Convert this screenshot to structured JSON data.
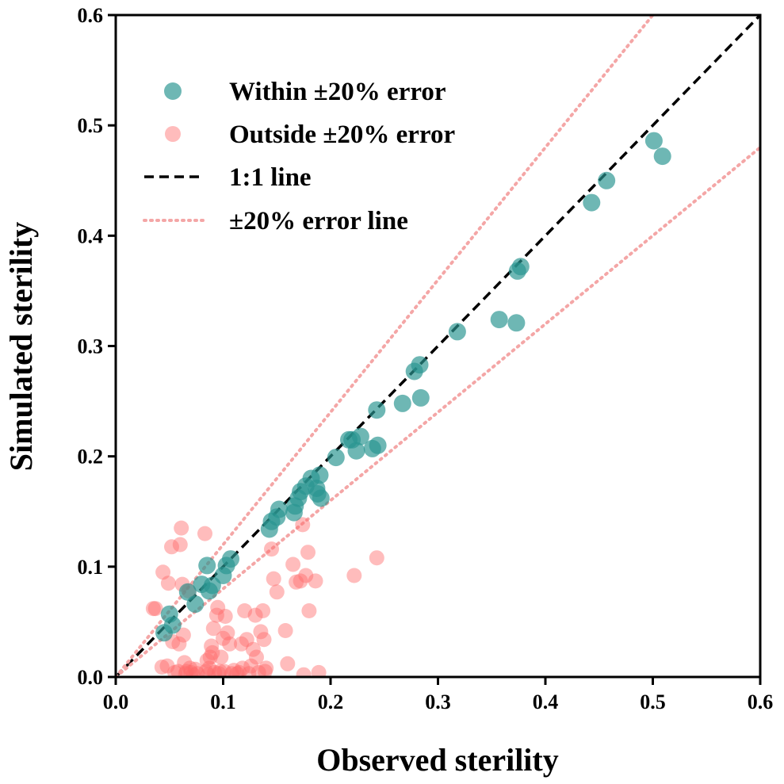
{
  "chart_data": {
    "type": "scatter",
    "title": "",
    "xlabel": "Observed sterility",
    "ylabel": "Simulated sterility",
    "xlim": [
      0.0,
      0.6
    ],
    "ylim": [
      0.0,
      0.6
    ],
    "xticks": [
      "0.0",
      "0.1",
      "0.2",
      "0.3",
      "0.4",
      "0.5",
      "0.6"
    ],
    "yticks": [
      "0.0",
      "0.1",
      "0.2",
      "0.3",
      "0.4",
      "0.5",
      "0.6"
    ],
    "grid": false,
    "legend_position": "top-left",
    "legend": [
      {
        "label": "Within ±20% error",
        "kind": "marker",
        "color": "#2a9590"
      },
      {
        "label": "Outside ±20% error",
        "kind": "marker",
        "color": "#ff7f7f"
      },
      {
        "label": "1:1 line",
        "kind": "dashed",
        "color": "#000000"
      },
      {
        "label": "±20% error line",
        "kind": "dotted",
        "color": "#f4a6a6"
      }
    ],
    "reference_lines": [
      {
        "name": "1:1 line",
        "slope": 1.0
      },
      {
        "name": "±20% error line",
        "slope": 1.2
      },
      {
        "name": "±20% error line",
        "slope": 0.8
      }
    ],
    "series": [
      {
        "name": "Within ±20% error",
        "color": "#2a9590",
        "points": [
          [
            0.045,
            0.04
          ],
          [
            0.05,
            0.057
          ],
          [
            0.053,
            0.047
          ],
          [
            0.067,
            0.077
          ],
          [
            0.074,
            0.066
          ],
          [
            0.08,
            0.084
          ],
          [
            0.085,
            0.101
          ],
          [
            0.087,
            0.078
          ],
          [
            0.09,
            0.083
          ],
          [
            0.1,
            0.092
          ],
          [
            0.103,
            0.101
          ],
          [
            0.107,
            0.107
          ],
          [
            0.143,
            0.134
          ],
          [
            0.145,
            0.141
          ],
          [
            0.15,
            0.145
          ],
          [
            0.152,
            0.152
          ],
          [
            0.166,
            0.149
          ],
          [
            0.167,
            0.155
          ],
          [
            0.17,
            0.162
          ],
          [
            0.172,
            0.168
          ],
          [
            0.177,
            0.173
          ],
          [
            0.182,
            0.18
          ],
          [
            0.187,
            0.171
          ],
          [
            0.188,
            0.166
          ],
          [
            0.19,
            0.183
          ],
          [
            0.191,
            0.162
          ],
          [
            0.205,
            0.199
          ],
          [
            0.217,
            0.215
          ],
          [
            0.22,
            0.215
          ],
          [
            0.224,
            0.205
          ],
          [
            0.228,
            0.218
          ],
          [
            0.239,
            0.207
          ],
          [
            0.243,
            0.242
          ],
          [
            0.244,
            0.21
          ],
          [
            0.267,
            0.248
          ],
          [
            0.278,
            0.277
          ],
          [
            0.283,
            0.283
          ],
          [
            0.284,
            0.253
          ],
          [
            0.318,
            0.313
          ],
          [
            0.357,
            0.324
          ],
          [
            0.373,
            0.321
          ],
          [
            0.374,
            0.368
          ],
          [
            0.377,
            0.372
          ],
          [
            0.443,
            0.43
          ],
          [
            0.457,
            0.45
          ],
          [
            0.501,
            0.486
          ],
          [
            0.509,
            0.472
          ]
        ]
      },
      {
        "name": "Outside ±20% error",
        "color": "#ff7f7f",
        "points": [
          [
            0.035,
            0.062
          ],
          [
            0.037,
            0.062
          ],
          [
            0.043,
            0.009
          ],
          [
            0.044,
            0.095
          ],
          [
            0.048,
            0.01
          ],
          [
            0.049,
            0.085
          ],
          [
            0.052,
            0.118
          ],
          [
            0.053,
            0.032
          ],
          [
            0.055,
            0.004
          ],
          [
            0.058,
            0.005
          ],
          [
            0.059,
            0.03
          ],
          [
            0.06,
            0.12
          ],
          [
            0.061,
            0.135
          ],
          [
            0.062,
            0.084
          ],
          [
            0.063,
            0.038
          ],
          [
            0.064,
            0.013
          ],
          [
            0.065,
            0.003
          ],
          [
            0.066,
            0.005
          ],
          [
            0.068,
            0.078
          ],
          [
            0.069,
            0.008
          ],
          [
            0.07,
            0.004
          ],
          [
            0.072,
            0.002
          ],
          [
            0.074,
            0.007
          ],
          [
            0.076,
            0.003
          ],
          [
            0.083,
            0.13
          ],
          [
            0.084,
            0.005
          ],
          [
            0.085,
            0.015
          ],
          [
            0.086,
            0.002
          ],
          [
            0.087,
            0.008
          ],
          [
            0.088,
            0.018
          ],
          [
            0.089,
            0.028
          ],
          [
            0.09,
            0.022
          ],
          [
            0.091,
            0.044
          ],
          [
            0.092,
            0.004
          ],
          [
            0.094,
            0.056
          ],
          [
            0.095,
            0.063
          ],
          [
            0.096,
            0.003
          ],
          [
            0.097,
            0.005
          ],
          [
            0.098,
            0.018
          ],
          [
            0.1,
            0.035
          ],
          [
            0.101,
            0.005
          ],
          [
            0.102,
            0.055
          ],
          [
            0.104,
            0.04
          ],
          [
            0.106,
            0.03
          ],
          [
            0.108,
            0.003
          ],
          [
            0.11,
            0.006
          ],
          [
            0.113,
            0.003
          ],
          [
            0.115,
            0.004
          ],
          [
            0.117,
            0.03
          ],
          [
            0.118,
            0.008
          ],
          [
            0.12,
            0.06
          ],
          [
            0.122,
            0.034
          ],
          [
            0.124,
            0.003
          ],
          [
            0.126,
            0.01
          ],
          [
            0.128,
            0.025
          ],
          [
            0.13,
            0.056
          ],
          [
            0.131,
            0.018
          ],
          [
            0.133,
            0.004
          ],
          [
            0.135,
            0.041
          ],
          [
            0.137,
            0.06
          ],
          [
            0.138,
            0.034
          ],
          [
            0.139,
            0.005
          ],
          [
            0.14,
            0.008
          ],
          [
            0.145,
            0.116
          ],
          [
            0.147,
            0.089
          ],
          [
            0.15,
            0.077
          ],
          [
            0.158,
            0.042
          ],
          [
            0.16,
            0.012
          ],
          [
            0.165,
            0.102
          ],
          [
            0.168,
            0.086
          ],
          [
            0.172,
            0.087
          ],
          [
            0.174,
            0.138
          ],
          [
            0.175,
            0.002
          ],
          [
            0.177,
            0.092
          ],
          [
            0.179,
            0.113
          ],
          [
            0.18,
            0.06
          ],
          [
            0.186,
            0.087
          ],
          [
            0.189,
            0.004
          ],
          [
            0.222,
            0.092
          ],
          [
            0.243,
            0.108
          ]
        ]
      }
    ]
  }
}
